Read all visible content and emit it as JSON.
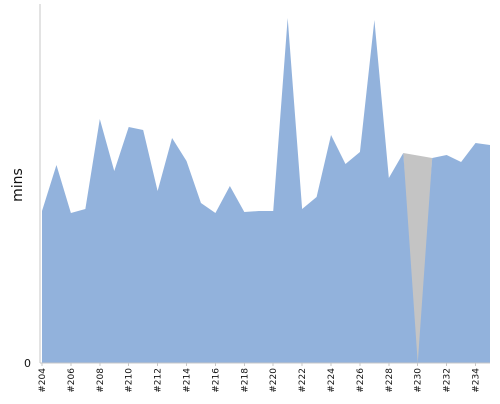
{
  "chart_data": {
    "type": "area",
    "title": "",
    "xlabel": "",
    "ylabel": "mins",
    "x": [
      "#204",
      "#205",
      "#206",
      "#207",
      "#208",
      "#209",
      "#210",
      "#211",
      "#212",
      "#213",
      "#214",
      "#215",
      "#216",
      "#217",
      "#218",
      "#219",
      "#220",
      "#221",
      "#222",
      "#223",
      "#224",
      "#225",
      "#226",
      "#227",
      "#228",
      "#229",
      "#230",
      "#231",
      "#232",
      "#233",
      "#234",
      "#235"
    ],
    "x_tick_labels": [
      "#204",
      "#206",
      "#208",
      "#210",
      "#212",
      "#214",
      "#216",
      "#218",
      "#220",
      "#222",
      "#224",
      "#226",
      "#228",
      "#230",
      "#232",
      "#234"
    ],
    "y_tick_labels": [
      "0"
    ],
    "ylim": [
      0,
      345
    ],
    "grid": false,
    "legend": "none",
    "series": [
      {
        "color": "#92b2dc",
        "values": [
          152,
          198,
          150,
          154,
          244,
          192,
          236,
          233,
          172,
          225,
          202,
          160,
          150,
          177,
          151,
          152,
          152,
          345,
          154,
          166,
          228,
          199,
          211,
          343,
          185,
          210,
          0,
          205,
          208,
          201,
          220,
          218
        ]
      },
      {
        "color": "#c4c4c4",
        "values": [
          0,
          0,
          0,
          0,
          0,
          0,
          0,
          0,
          0,
          0,
          0,
          0,
          0,
          0,
          0,
          0,
          0,
          0,
          0,
          0,
          0,
          0,
          0,
          0,
          0,
          0,
          0,
          0,
          0,
          0,
          0,
          0
        ]
      }
    ]
  }
}
